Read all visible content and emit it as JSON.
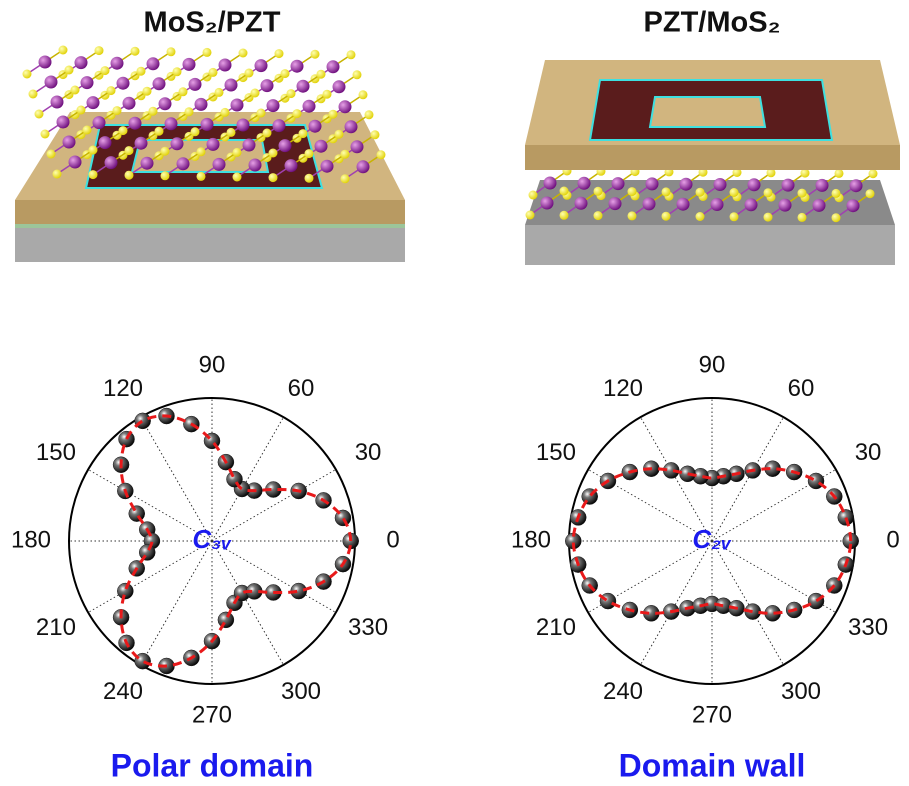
{
  "chart_data": [
    {
      "type": "polar",
      "title": "MoS₂/PZT",
      "caption": "Polar domain",
      "center_label": "C₃ᵥ",
      "theta": [
        0,
        10,
        20,
        30,
        40,
        50,
        60,
        70,
        80,
        90,
        100,
        110,
        120,
        130,
        140,
        150,
        160,
        170,
        180,
        190,
        200,
        210,
        220,
        230,
        240,
        250,
        260,
        270,
        280,
        290,
        300,
        310,
        320,
        330,
        340,
        350
      ],
      "r": [
        0.97,
        0.93,
        0.83,
        0.7,
        0.56,
        0.46,
        0.42,
        0.46,
        0.56,
        0.7,
        0.83,
        0.93,
        0.97,
        0.93,
        0.83,
        0.7,
        0.56,
        0.46,
        0.42,
        0.46,
        0.56,
        0.7,
        0.83,
        0.93,
        0.97,
        0.93,
        0.83,
        0.7,
        0.56,
        0.46,
        0.42,
        0.46,
        0.56,
        0.7,
        0.83,
        0.93
      ],
      "rlim": [
        0,
        1
      ],
      "thetaticks": [
        0,
        30,
        60,
        90,
        120,
        150,
        180,
        210,
        240,
        270,
        300,
        330
      ],
      "color": "#1a1a1a",
      "line_color": "#e8191a"
    },
    {
      "type": "polar",
      "title": "PZT/MoS₂",
      "caption": "Domain wall",
      "center_label": "C₂ᵥ",
      "theta": [
        0,
        10,
        20,
        30,
        40,
        50,
        60,
        70,
        80,
        90,
        100,
        110,
        120,
        130,
        140,
        150,
        160,
        170,
        180,
        190,
        200,
        210,
        220,
        230,
        240,
        250,
        260,
        270,
        280,
        290,
        300,
        310,
        320,
        330,
        340,
        350
      ],
      "r": [
        0.97,
        0.95,
        0.91,
        0.84,
        0.75,
        0.66,
        0.57,
        0.5,
        0.46,
        0.44,
        0.46,
        0.5,
        0.57,
        0.66,
        0.75,
        0.84,
        0.91,
        0.95,
        0.97,
        0.95,
        0.91,
        0.84,
        0.75,
        0.66,
        0.57,
        0.5,
        0.46,
        0.44,
        0.46,
        0.5,
        0.57,
        0.66,
        0.75,
        0.84,
        0.91,
        0.95
      ],
      "rlim": [
        0,
        1
      ],
      "thetaticks": [
        0,
        30,
        60,
        90,
        120,
        150,
        180,
        210,
        240,
        270,
        300,
        330
      ],
      "color": "#1a1a1a",
      "line_color": "#e8191a"
    }
  ]
}
